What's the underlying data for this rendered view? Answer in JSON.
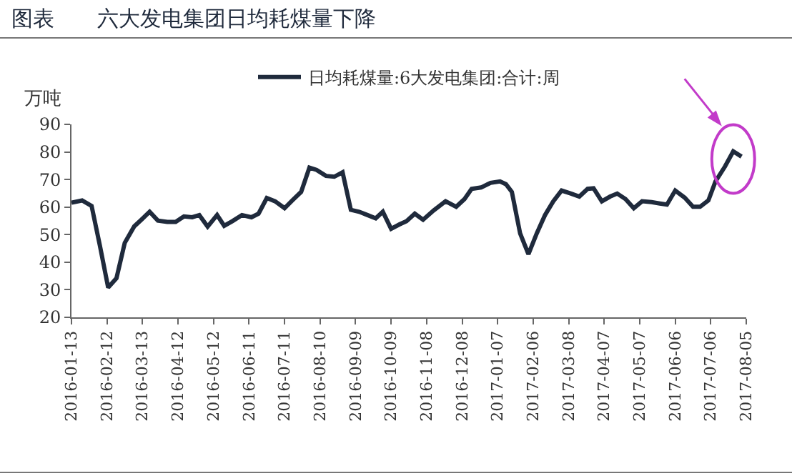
{
  "chart_data": {
    "type": "line",
    "title": "图表　　六大发电集团日均耗煤量下降",
    "ylabel": "万吨",
    "x": [
      "2016-01-13",
      "2016-01-22",
      "2016-01-30",
      "2016-02-06",
      "2016-02-13",
      "2016-02-20",
      "2016-02-27",
      "2016-03-06",
      "2016-03-12",
      "2016-03-19",
      "2016-03-26",
      "2016-04-03",
      "2016-04-10",
      "2016-04-17",
      "2016-04-24",
      "2016-04-30",
      "2016-05-07",
      "2016-05-15",
      "2016-05-21",
      "2016-05-28",
      "2016-06-05",
      "2016-06-13",
      "2016-06-19",
      "2016-06-26",
      "2016-07-03",
      "2016-07-11",
      "2016-07-18",
      "2016-07-25",
      "2016-08-01",
      "2016-08-07",
      "2016-08-15",
      "2016-08-22",
      "2016-08-29",
      "2016-09-05",
      "2016-09-12",
      "2016-09-19",
      "2016-09-26",
      "2016-10-02",
      "2016-10-09",
      "2016-10-16",
      "2016-10-22",
      "2016-10-29",
      "2016-11-05",
      "2016-11-14",
      "2016-11-24",
      "2016-12-03",
      "2016-12-10",
      "2016-12-16",
      "2016-12-24",
      "2017-01-01",
      "2017-01-09",
      "2017-01-14",
      "2017-01-19",
      "2017-01-26",
      "2017-02-02",
      "2017-02-09",
      "2017-02-16",
      "2017-02-23",
      "2017-03-02",
      "2017-03-10",
      "2017-03-17",
      "2017-03-24",
      "2017-03-29",
      "2017-04-05",
      "2017-04-12",
      "2017-04-18",
      "2017-04-25",
      "2017-05-02",
      "2017-05-09",
      "2017-05-17",
      "2017-05-24",
      "2017-05-30",
      "2017-06-06",
      "2017-06-14",
      "2017-06-21",
      "2017-06-27",
      "2017-07-04",
      "2017-07-10",
      "2017-07-18",
      "2017-07-25",
      "2017-08-01"
    ],
    "series": [
      {
        "name": "日均耗煤量:6大发电集团:合计:周",
        "color": "#1f2a3c",
        "values": [
          61.6,
          62.4,
          60.4,
          46,
          30.8,
          34.2,
          47,
          53,
          55.4,
          58.3,
          55.1,
          54.6,
          54.6,
          56.6,
          56.3,
          57.1,
          52.9,
          57.1,
          53.2,
          54.9,
          57.1,
          56.3,
          57.6,
          63.3,
          62.1,
          59.6,
          62.6,
          65.5,
          74.3,
          73.5,
          71.3,
          71,
          72.6,
          59,
          58.3,
          57.1,
          55.9,
          58.3,
          52.1,
          53.7,
          54.9,
          57.6,
          55.4,
          58.8,
          62.1,
          60.1,
          62.9,
          66.6,
          67.1,
          68.8,
          69.3,
          68.3,
          65.5,
          50.4,
          42.9,
          50.4,
          57.1,
          62.1,
          66,
          64.9,
          63.8,
          66.6,
          66.8,
          62.1,
          63.8,
          64.9,
          62.9,
          59.6,
          62.1,
          61.8,
          61.3,
          60.9,
          66,
          63.4,
          60.1,
          60.1,
          62.4,
          69.3,
          74.7,
          80.2,
          78.3
        ]
      }
    ],
    "xlim": [
      "2016-01-13",
      "2017-08-05"
    ],
    "xticks": [
      {
        "value": "2016-01-13",
        "label": "2016-01-13"
      },
      {
        "value": "2016-02-12",
        "label": "2016-02-12"
      },
      {
        "value": "2016-03-13",
        "label": "2016-03-13"
      },
      {
        "value": "2016-04-12",
        "label": "2016-04-12"
      },
      {
        "value": "2016-05-12",
        "label": "2016-05-12"
      },
      {
        "value": "2016-06-11",
        "label": "2016-06-11"
      },
      {
        "value": "2016-07-11",
        "label": "2016-07-11"
      },
      {
        "value": "2016-08-10",
        "label": "2016-08-10"
      },
      {
        "value": "2016-09-09",
        "label": "2016-09-09"
      },
      {
        "value": "2016-10-09",
        "label": "2016-10-09"
      },
      {
        "value": "2016-11-08",
        "label": "2016-11-08"
      },
      {
        "value": "2016-12-08",
        "label": "2016-12-08"
      },
      {
        "value": "2017-01-07",
        "label": "2017-01-07"
      },
      {
        "value": "2017-02-06",
        "label": "2017-02-06"
      },
      {
        "value": "2017-03-08",
        "label": "2017-03-08"
      },
      {
        "value": "2017-04-07",
        "label": "2017-04-07"
      },
      {
        "value": "2017-05-07",
        "label": "2017-05-07"
      },
      {
        "value": "2017-06-06",
        "label": "2017-06-06"
      },
      {
        "value": "2017-07-06",
        "label": "2017-07-06"
      },
      {
        "value": "2017-08-05",
        "label": "2017-08-05"
      }
    ],
    "ylim": [
      20,
      90
    ],
    "yticks": [
      20,
      30,
      40,
      50,
      60,
      70,
      80,
      90
    ],
    "grid": false,
    "legend": "top",
    "marker": "none",
    "line_style": "solid"
  }
}
